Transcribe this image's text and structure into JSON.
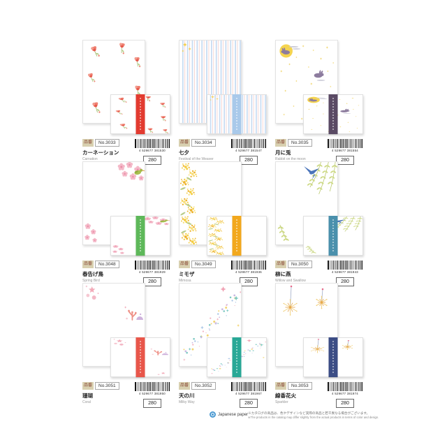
{
  "page": {
    "hinban_label": "品番",
    "footer": {
      "brand": "Japanese paper",
      "note_jp": "※カタログの商品は、色やデザインなど実際の商品と若干異なる場合がございます。",
      "note_en": "※The products in the catalog may differ slightly from the actual products in terms of color and design."
    }
  },
  "products": [
    {
      "code": "No.3033",
      "name_jp": "カーネーション",
      "name_en": "Carnation",
      "barcode": "4 529677 381530",
      "price": "280",
      "band_color": "#e23b30",
      "design": "carnation"
    },
    {
      "code": "No.3034",
      "name_jp": "七夕",
      "name_en": "Festival of the Weaver",
      "barcode": "4 529677 381547",
      "price": "280",
      "band_color": "#a9c9ea",
      "design": "stripes"
    },
    {
      "code": "No.3035",
      "name_jp": "月に兎",
      "name_en": "Rabbit on the moon",
      "barcode": "4 529677 381554",
      "price": "280",
      "band_color": "#5a4a64",
      "design": "moon"
    },
    {
      "code": "No.3048",
      "name_jp": "春告げ鳥",
      "name_en": "Spring Bird",
      "barcode": "4 529677 381929",
      "price": "280",
      "band_color": "#5eb85a",
      "design": "springbird"
    },
    {
      "code": "No.3049",
      "name_jp": "ミモザ",
      "name_en": "Mimosa",
      "barcode": "4 529677 381936",
      "price": "280",
      "band_color": "#f2a81d",
      "design": "mimosa"
    },
    {
      "code": "No.3050",
      "name_jp": "柳に燕",
      "name_en": "Willow and Swallow",
      "barcode": "4 529677 381943",
      "price": "280",
      "band_color": "#4a90ac",
      "design": "willow"
    },
    {
      "code": "No.3051",
      "name_jp": "珊瑚",
      "name_en": "Coral",
      "barcode": "4 529677 381950",
      "price": "280",
      "band_color": "#e8564a",
      "design": "coral"
    },
    {
      "code": "No.3052",
      "name_jp": "天の川",
      "name_en": "Milky Way",
      "barcode": "4 529677 381967",
      "price": "280",
      "band_color": "#29a896",
      "design": "milkyway"
    },
    {
      "code": "No.3053",
      "name_jp": "線香花火",
      "name_en": "Sparkler",
      "barcode": "4 529677 381974",
      "price": "280",
      "band_color": "#3c4d85",
      "design": "sparkler"
    }
  ]
}
